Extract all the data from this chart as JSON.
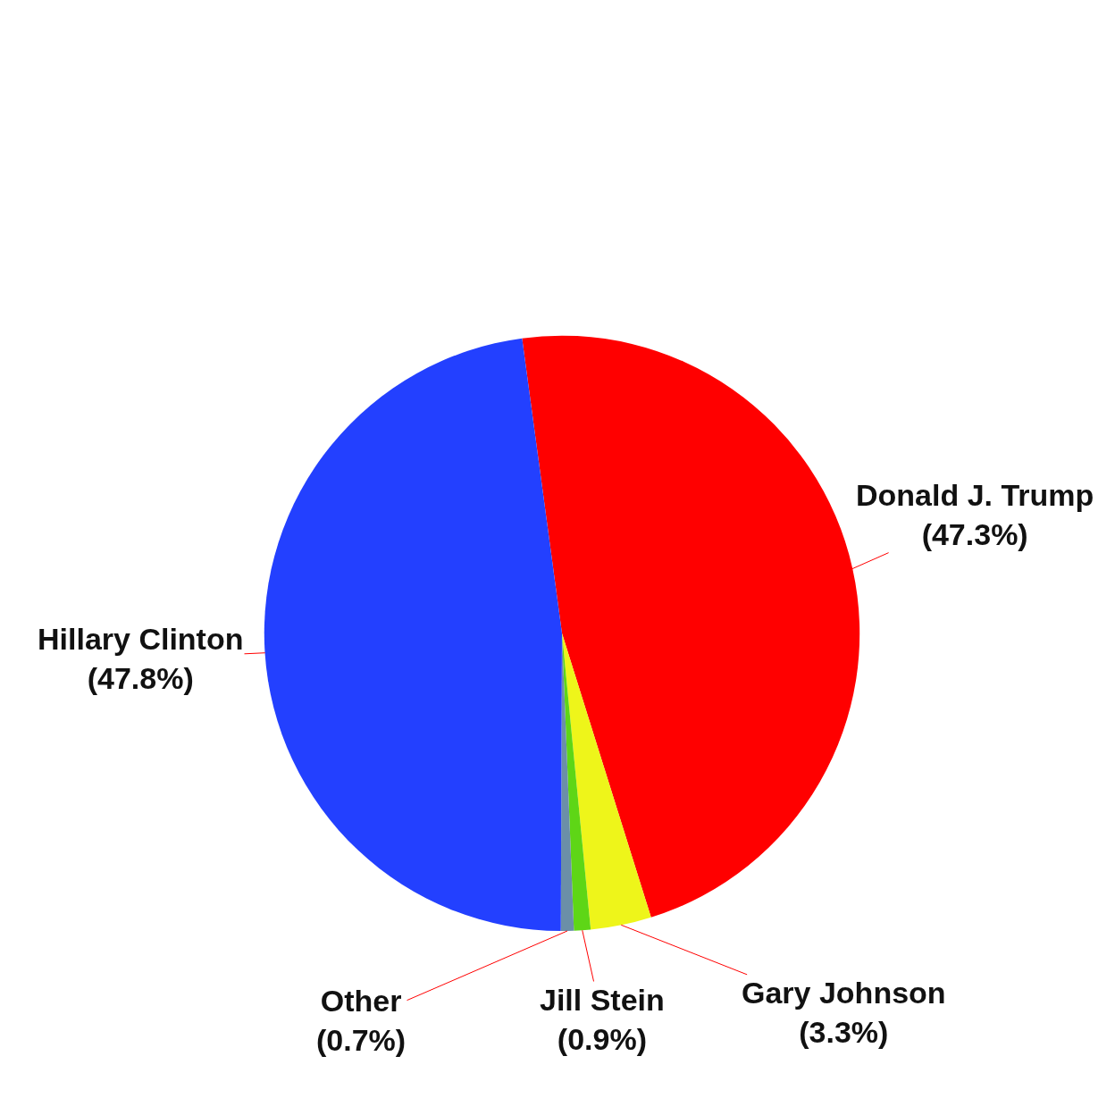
{
  "chart_data": {
    "type": "pie",
    "categories": [
      "Donald J. Trump",
      "Gary Johnson",
      "Jill Stein",
      "Other",
      "Hillary Clinton"
    ],
    "values": [
      47.3,
      3.3,
      0.9,
      0.7,
      47.8
    ],
    "value_labels": [
      "(47.3%)",
      "(3.3%)",
      "(0.9%)",
      "(0.7%)",
      "(47.8%)"
    ],
    "colors": [
      "#ff0000",
      "#eef51a",
      "#5ed616",
      "#6b8fa8",
      "#2340ff"
    ],
    "legend": false
  }
}
